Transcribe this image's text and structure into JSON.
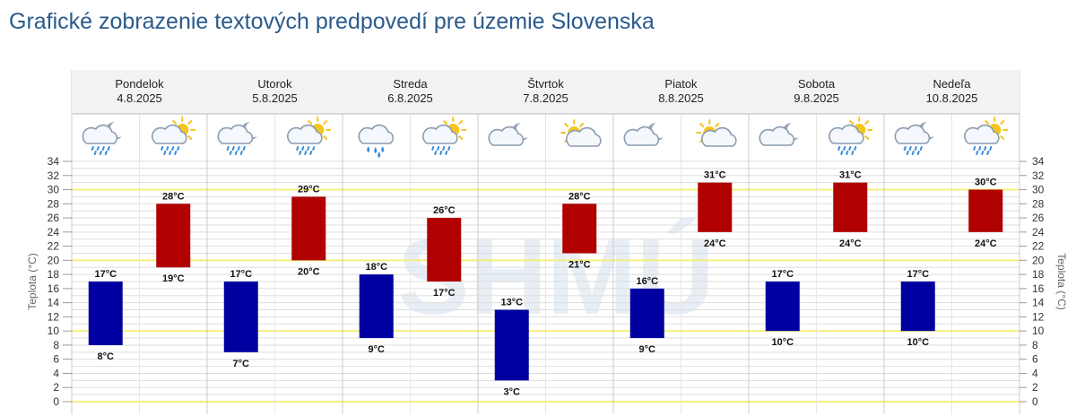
{
  "title": "Grafické zobrazenie textových predpovedí pre územie Slovenska",
  "colors": {
    "title": "#2a5a8c",
    "night_bar": "#0000a0",
    "day_bar": "#b00000",
    "highlight_line": "#f5ee7c",
    "grid": "#dddddd",
    "header_bg": "#f3f3f3"
  },
  "chart_data": {
    "type": "bar",
    "ylabel": "Teplota (°C)",
    "ylim": [
      0,
      34
    ],
    "yticks": [
      0,
      2,
      4,
      6,
      8,
      10,
      12,
      14,
      16,
      18,
      20,
      22,
      24,
      26,
      28,
      30,
      32,
      34
    ],
    "highlight_lines": [
      0,
      10,
      20,
      30
    ],
    "unit": "°C",
    "days": [
      {
        "name": "Pondelok",
        "date": "4.8.2025",
        "night": {
          "min": 8,
          "max": 17,
          "icon": "cloud-moon-drizzle-icon"
        },
        "day": {
          "min": 19,
          "max": 28,
          "icon": "cloud-sun-drizzle-icon"
        }
      },
      {
        "name": "Utorok",
        "date": "5.8.2025",
        "night": {
          "min": 7,
          "max": 17,
          "icon": "cloud-moon-drizzle-icon"
        },
        "day": {
          "min": 20,
          "max": 29,
          "icon": "cloud-sun-drizzle-icon"
        }
      },
      {
        "name": "Streda",
        "date": "6.8.2025",
        "night": {
          "min": 9,
          "max": 18,
          "icon": "cloud-rain-icon"
        },
        "day": {
          "min": 17,
          "max": 26,
          "icon": "cloud-sun-drizzle-icon"
        }
      },
      {
        "name": "Štvrtok",
        "date": "7.8.2025",
        "night": {
          "min": 3,
          "max": 13,
          "icon": "cloud-moon-icon"
        },
        "day": {
          "min": 21,
          "max": 28,
          "icon": "sun-cloud-icon"
        }
      },
      {
        "name": "Piatok",
        "date": "8.8.2025",
        "night": {
          "min": 9,
          "max": 16,
          "icon": "cloud-moon-icon"
        },
        "day": {
          "min": 24,
          "max": 31,
          "icon": "sun-cloud-icon"
        }
      },
      {
        "name": "Sobota",
        "date": "9.8.2025",
        "night": {
          "min": 10,
          "max": 17,
          "icon": "cloud-moon-icon"
        },
        "day": {
          "min": 24,
          "max": 31,
          "icon": "cloud-sun-drizzle-icon"
        }
      },
      {
        "name": "Nedeľa",
        "date": "10.8.2025",
        "night": {
          "min": 10,
          "max": 17,
          "icon": "cloud-moon-drizzle-icon"
        },
        "day": {
          "min": 24,
          "max": 30,
          "icon": "cloud-sun-drizzle-icon"
        }
      }
    ]
  },
  "watermark": "SHMÚ"
}
